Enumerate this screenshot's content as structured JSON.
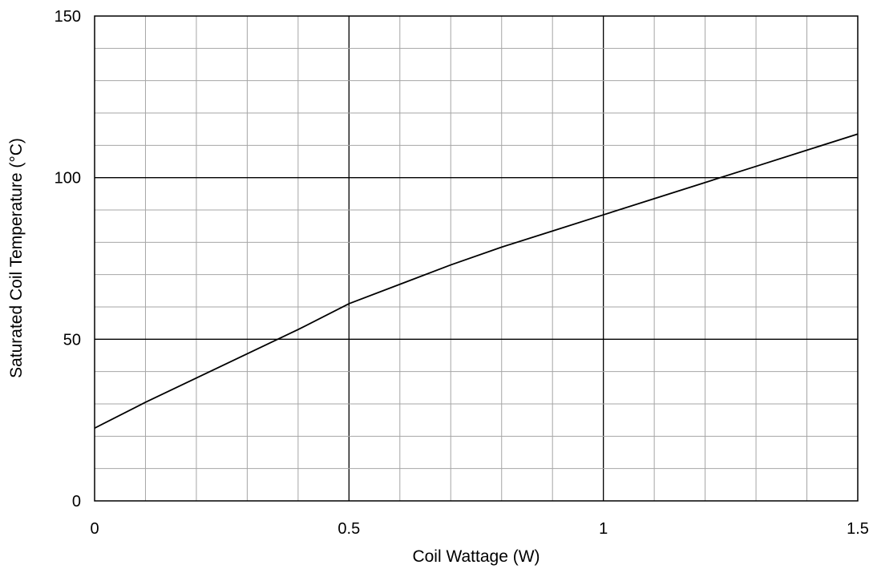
{
  "chart_data": {
    "type": "line",
    "title": "",
    "xlabel": "Coil Wattage  (W)",
    "ylabel": "Saturated Coil Temperature  (°C)",
    "xlim": [
      0,
      1.5
    ],
    "ylim": [
      0,
      150
    ],
    "x_ticks": [
      0,
      0.5,
      1,
      1.5
    ],
    "x_tick_labels": [
      "0",
      "0.5",
      "1",
      "1.5"
    ],
    "y_ticks": [
      0,
      50,
      100,
      150
    ],
    "y_tick_labels": [
      "0",
      "50",
      "100",
      "150"
    ],
    "grid": true,
    "series": [
      {
        "x": [
          0,
          0.1,
          0.2,
          0.3,
          0.4,
          0.5,
          0.6,
          0.7,
          0.8,
          0.9,
          1.0,
          1.1,
          1.2,
          1.3,
          1.4,
          1.5
        ],
        "values": [
          22.5,
          30.5,
          38,
          45.5,
          53,
          61,
          67,
          73,
          78.5,
          83.5,
          88.5,
          93.5,
          98.5,
          103.5,
          108.5,
          113.5
        ]
      }
    ]
  },
  "colors": {
    "line": "#000000",
    "major_grid": "#000000",
    "minor_grid": "#a6a6a6",
    "background": "#ffffff"
  }
}
